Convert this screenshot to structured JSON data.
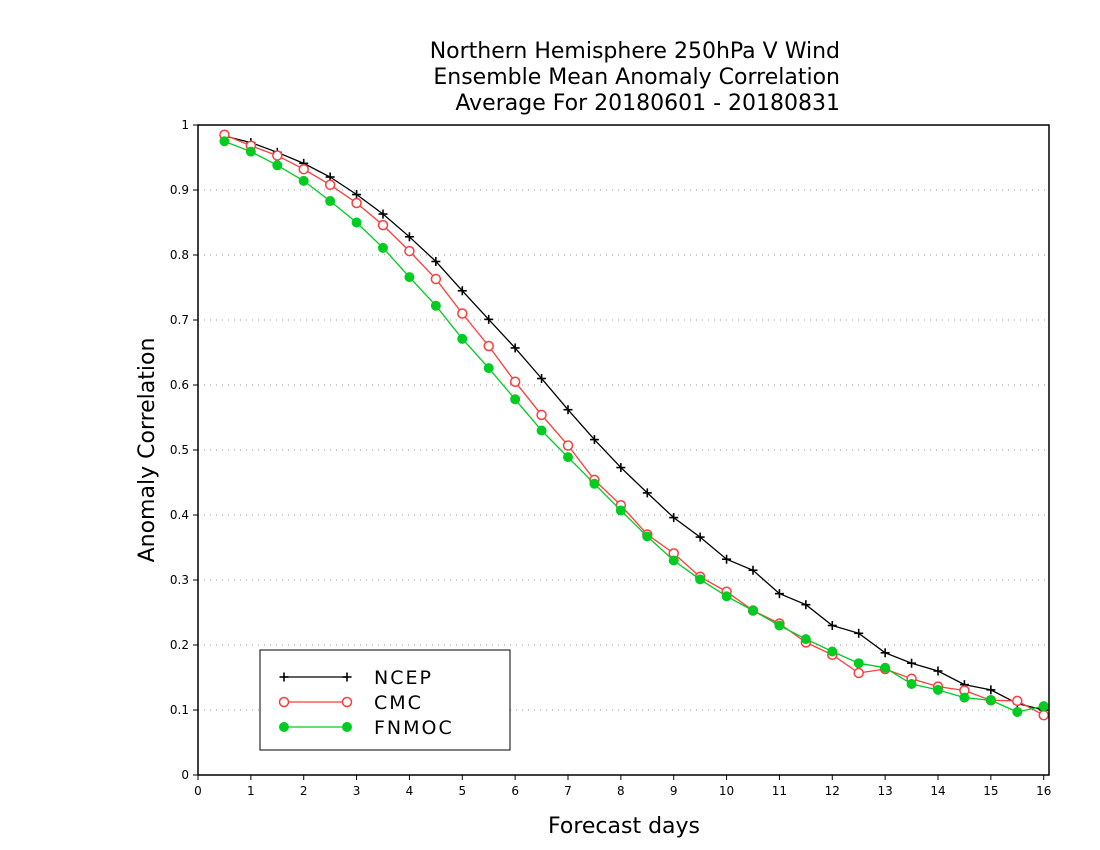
{
  "chart_data": {
    "type": "line",
    "title": [
      "Northern Hemisphere 250hPa V Wind",
      "Ensemble Mean Anomaly Correlation",
      "Average For 20180601 - 20180831"
    ],
    "xlabel": "Forecast days",
    "ylabel": "Anomaly Correlation",
    "xlim": [
      0,
      16.1
    ],
    "ylim": [
      0,
      1
    ],
    "xticks": [
      0,
      1,
      2,
      3,
      4,
      5,
      6,
      7,
      8,
      9,
      10,
      11,
      12,
      13,
      14,
      15,
      16
    ],
    "xtick_labels": [
      "0",
      "1",
      "2",
      "3",
      "4",
      "5",
      "6",
      "7",
      "8",
      "9",
      "10",
      "11",
      "12",
      "13",
      "14",
      "15",
      "16"
    ],
    "yticks": [
      0,
      0.1,
      0.2,
      0.3,
      0.4,
      0.5,
      0.6,
      0.7,
      0.8,
      0.9,
      1
    ],
    "ytick_labels": [
      "0",
      "0.1",
      "0.2",
      "0.3",
      "0.4",
      "0.5",
      "0.6",
      "0.7",
      "0.8",
      "0.9",
      "1"
    ],
    "grid": "horizontal dotted",
    "legend_position": "bottom-left",
    "x": [
      0.5,
      1.0,
      1.5,
      2.0,
      2.5,
      3.0,
      3.5,
      4.0,
      4.5,
      5.0,
      5.5,
      6.0,
      6.5,
      7.0,
      7.5,
      8.0,
      8.5,
      9.0,
      9.5,
      10.0,
      10.5,
      11.0,
      11.5,
      12.0,
      12.5,
      13.0,
      13.5,
      14.0,
      14.5,
      15.0,
      15.5,
      16.0
    ],
    "series": [
      {
        "name": "NCEP",
        "color": "#000000",
        "marker": "plus",
        "values": [
          0.983,
          0.973,
          0.958,
          0.941,
          0.92,
          0.893,
          0.863,
          0.828,
          0.79,
          0.745,
          0.701,
          0.657,
          0.61,
          0.562,
          0.516,
          0.473,
          0.434,
          0.396,
          0.366,
          0.332,
          0.315,
          0.279,
          0.262,
          0.23,
          0.218,
          0.188,
          0.172,
          0.16,
          0.139,
          0.131,
          0.11,
          0.1
        ]
      },
      {
        "name": "CMC",
        "color": "#ff3b3b",
        "marker": "open-circle",
        "values": [
          0.985,
          0.968,
          0.953,
          0.932,
          0.908,
          0.88,
          0.846,
          0.806,
          0.763,
          0.71,
          0.66,
          0.605,
          0.554,
          0.507,
          0.454,
          0.415,
          0.37,
          0.341,
          0.305,
          0.282,
          0.253,
          0.233,
          0.204,
          0.185,
          0.157,
          0.163,
          0.148,
          0.136,
          0.13,
          0.115,
          0.114,
          0.092
        ]
      },
      {
        "name": "FNMOC",
        "color": "#00cc22",
        "marker": "filled-circle",
        "values": [
          0.975,
          0.959,
          0.938,
          0.914,
          0.883,
          0.85,
          0.811,
          0.766,
          0.722,
          0.671,
          0.626,
          0.578,
          0.53,
          0.489,
          0.448,
          0.407,
          0.367,
          0.33,
          0.301,
          0.275,
          0.253,
          0.23,
          0.209,
          0.19,
          0.172,
          0.165,
          0.14,
          0.131,
          0.119,
          0.115,
          0.097,
          0.106
        ]
      }
    ]
  }
}
